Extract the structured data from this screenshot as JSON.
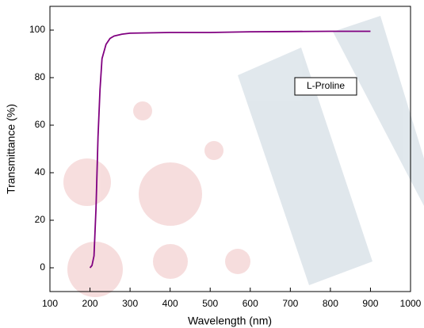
{
  "chart_data": {
    "type": "line",
    "x_label": "Wavelength (nm)",
    "y_label": "Transmittance (%)",
    "annotation": "L-Proline",
    "xlim": [
      100,
      1000
    ],
    "ylim": [
      -10,
      110
    ],
    "xticks": [
      100,
      200,
      300,
      400,
      500,
      600,
      700,
      800,
      900,
      1000
    ],
    "yticks": [
      0,
      20,
      40,
      60,
      80,
      100
    ],
    "x": [
      200,
      205,
      210,
      215,
      220,
      225,
      230,
      240,
      250,
      260,
      280,
      300,
      400,
      500,
      600,
      700,
      800,
      900
    ],
    "series": [
      {
        "name": "L-Proline",
        "color": "#800080",
        "values": [
          0,
          1,
          5,
          25,
          55,
          75,
          88,
          94,
          96.5,
          97.5,
          98.3,
          98.7,
          99,
          99,
          99.3,
          99.4,
          99.5,
          99.5
        ]
      }
    ]
  }
}
